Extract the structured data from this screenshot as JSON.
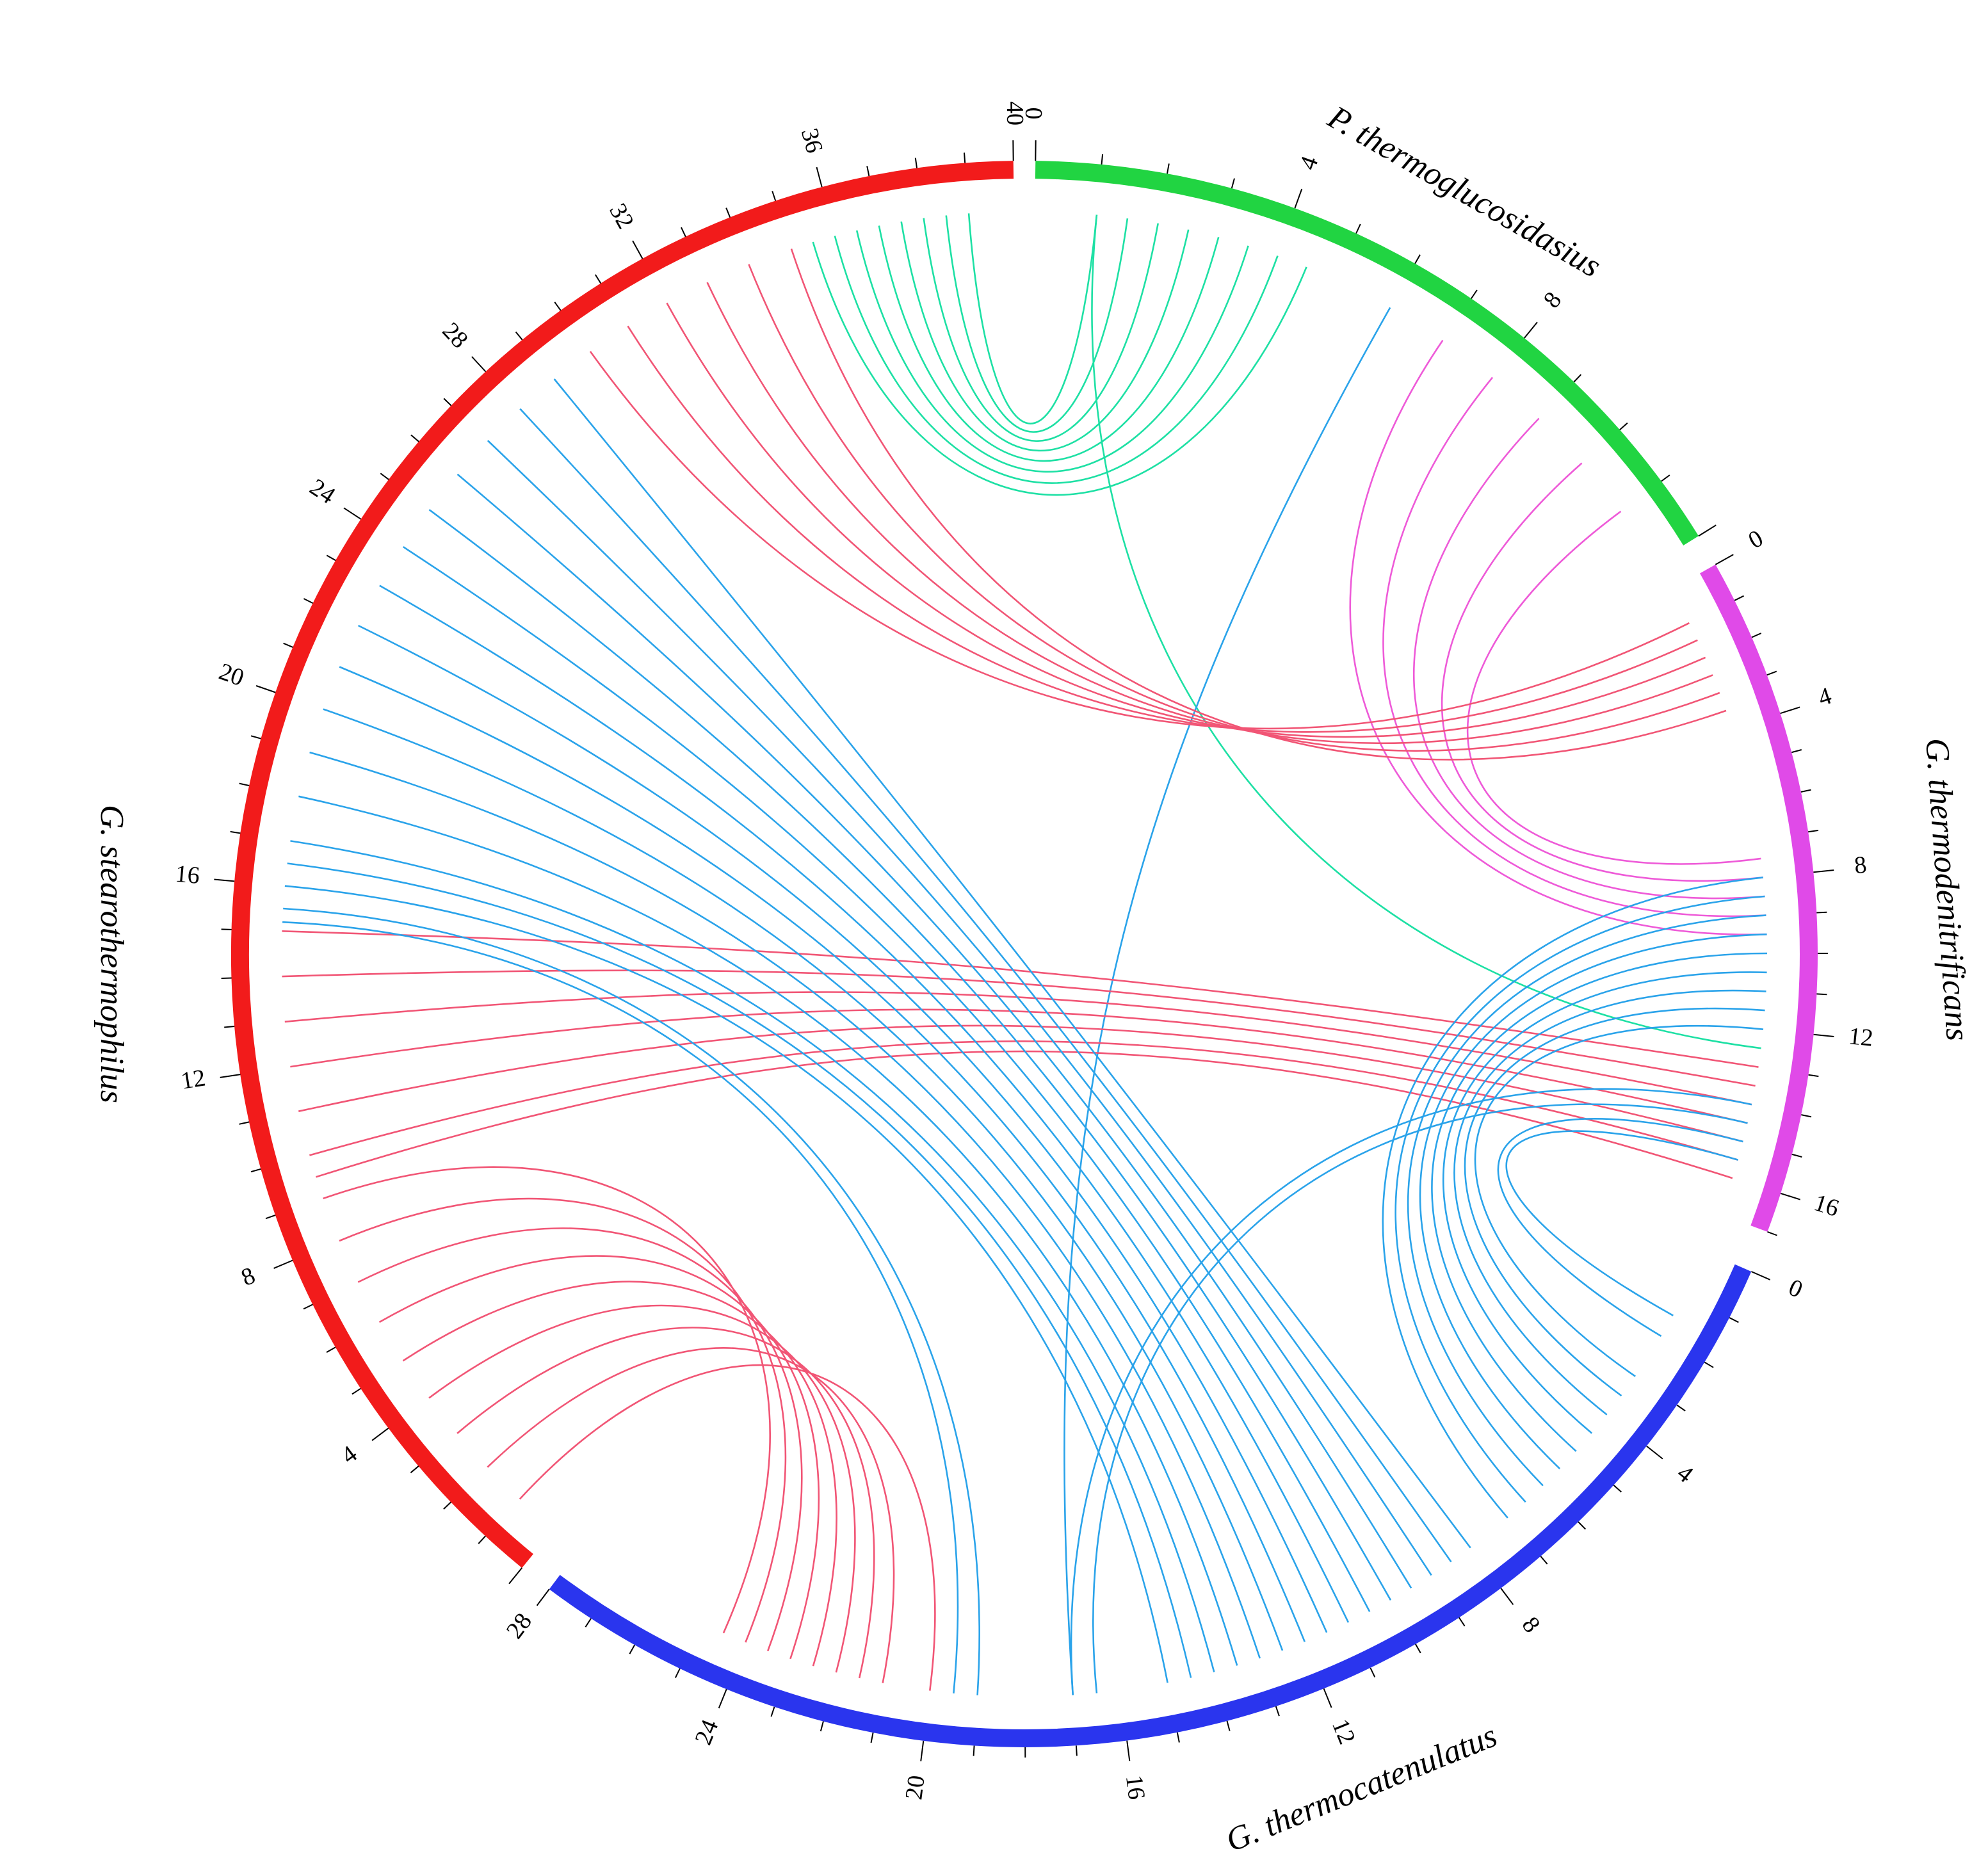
{
  "chart_data": {
    "type": "circos",
    "title": "",
    "genomes": [
      {
        "id": "pthermo",
        "name": "P. thermoglucosidasius",
        "color": "#21d442",
        "length": 12,
        "tick_labels": [
          "0",
          "4",
          "8"
        ]
      },
      {
        "id": "gthermod",
        "name": "G. thermodenitrificans",
        "color": "#e04ae8",
        "length": 17,
        "tick_labels": [
          "0",
          "4",
          "8",
          "12",
          "16"
        ]
      },
      {
        "id": "gthermoc",
        "name": "G. thermocatenulatus",
        "color": "#2a35ee",
        "length": 28,
        "tick_labels": [
          "0",
          "4",
          "8",
          "12",
          "16",
          "20",
          "24",
          "28"
        ]
      },
      {
        "id": "gstearo",
        "name": "G. stearothermophilus",
        "color": "#f21b1b",
        "length": 40,
        "tick_labels": [
          "4",
          "8",
          "12",
          "16",
          "20",
          "24",
          "28",
          "32",
          "36",
          "40"
        ]
      }
    ],
    "link_groups": [
      {
        "between": [
          "P. thermoglucosidasius",
          "G. stearothermophilus"
        ],
        "color": "#1de0a4",
        "pairs": [
          [
            1,
            39
          ],
          [
            1.5,
            38.5
          ],
          [
            2,
            38
          ],
          [
            2.5,
            37.5
          ],
          [
            3,
            37
          ],
          [
            3.5,
            36.5
          ],
          [
            4,
            36
          ],
          [
            4.5,
            35.5
          ]
        ],
        "extra_pairs": [
          [
            1,
            12.5
          ]
        ],
        "extra_target": "G. thermodenitrificans"
      },
      {
        "between": [
          "P. thermoglucosidasius",
          "G. thermocatenulatus"
        ],
        "color": "#2aa3ea",
        "pairs": [
          [
            6,
            17
          ]
        ]
      },
      {
        "between": [
          "P. thermoglucosidasius",
          "G. thermodenitrificans"
        ],
        "color": "#ee5ad8",
        "pairs": [
          [
            7,
            9.5
          ],
          [
            8,
            9
          ],
          [
            9,
            8.5
          ],
          [
            10,
            8
          ],
          [
            11,
            7.5
          ]
        ]
      },
      {
        "between": [
          "G. stearothermophilus",
          "G. thermodenitrificans"
        ],
        "color": "#f15575",
        "pairs": [
          [
            35,
            3.5
          ],
          [
            34,
            3
          ],
          [
            33,
            2.5
          ],
          [
            32,
            2
          ],
          [
            31,
            1.5
          ],
          [
            30,
            1
          ]
        ]
      },
      {
        "between": [
          "G. stearothermophilus",
          "G. thermodenitrificans"
        ],
        "color": "#f15575",
        "pairs": [
          [
            15,
            13
          ],
          [
            14,
            13.5
          ],
          [
            13,
            14
          ],
          [
            12,
            14.5
          ],
          [
            11,
            15
          ],
          [
            10,
            15.5
          ],
          [
            9.5,
            16
          ]
        ]
      },
      {
        "between": [
          "G. stearothermophilus",
          "G. thermocatenulatus"
        ],
        "color": "#f15575",
        "pairs": [
          [
            1,
            20
          ],
          [
            2,
            21
          ],
          [
            3,
            21.5
          ],
          [
            4,
            22
          ],
          [
            5,
            22.5
          ],
          [
            6,
            23
          ],
          [
            7,
            23.5
          ],
          [
            8,
            24
          ],
          [
            9,
            24.5
          ]
        ]
      },
      {
        "between": [
          "G. stearothermophilus",
          "G. thermocatenulatus"
        ],
        "color": "#2aa3ea",
        "pairs": [
          [
            29,
            8
          ],
          [
            28,
            8.5
          ],
          [
            27,
            9
          ],
          [
            26,
            9.5
          ],
          [
            25,
            10
          ],
          [
            24,
            10.5
          ],
          [
            23,
            11
          ],
          [
            22,
            11.5
          ],
          [
            21,
            12
          ],
          [
            20,
            12.5
          ],
          [
            19,
            13
          ],
          [
            18,
            13.5
          ],
          [
            17,
            14
          ],
          [
            16.5,
            14.5
          ],
          [
            16,
            15
          ],
          [
            15.5,
            19
          ],
          [
            15.2,
            19.5
          ]
        ]
      },
      {
        "between": [
          "G. thermodenitrificans",
          "G. thermocatenulatus"
        ],
        "color": "#2aa3ea",
        "pairs": [
          [
            8,
            7
          ],
          [
            8.5,
            6.5
          ],
          [
            9,
            6
          ],
          [
            9.5,
            5.5
          ],
          [
            10,
            5
          ],
          [
            10.5,
            4.5
          ],
          [
            11,
            4
          ],
          [
            11.5,
            3.5
          ],
          [
            12,
            3
          ],
          [
            14,
            17
          ],
          [
            14.5,
            16.5
          ],
          [
            15,
            2
          ],
          [
            15.5,
            1.5
          ]
        ]
      }
    ]
  }
}
